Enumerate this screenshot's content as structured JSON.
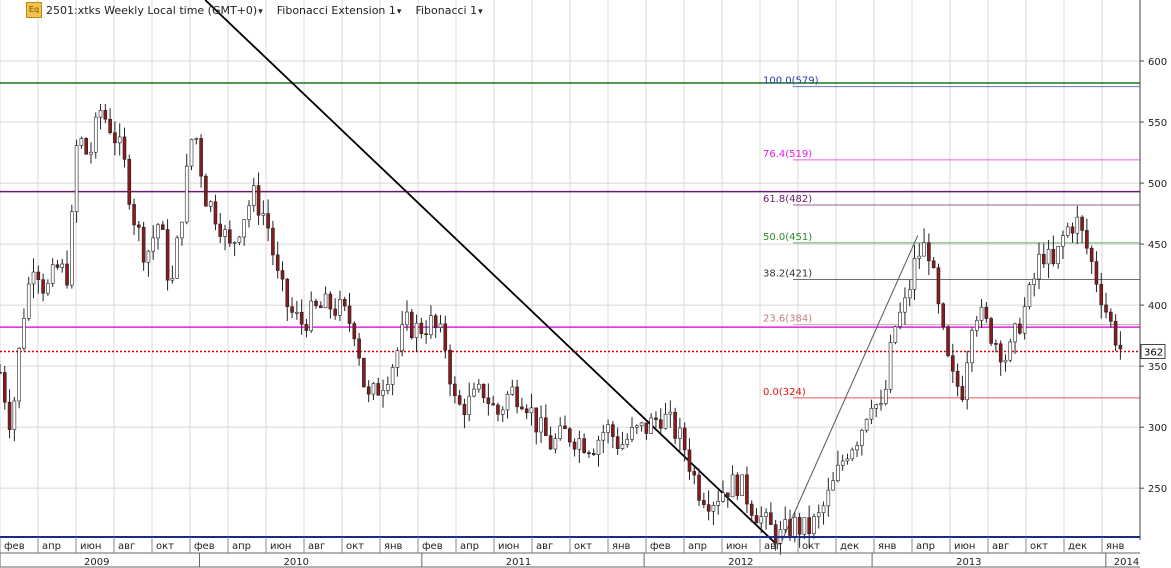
{
  "header": {
    "symbol_label": "2501:xtks Weekly Local time (GMT+0)",
    "indicator_1": "Fibonacci Extension 1",
    "indicator_2": "Fibonacci 1"
  },
  "price_label": "362",
  "colors": {
    "candle_up": "#ffffff",
    "candle_down": "#8b1a1a",
    "candle_wick": "#222222",
    "h_green": "#1a7a1a",
    "h_purple": "#6a1a6a",
    "h_magenta": "#e020e0",
    "h_red_dotted": "#cc0000",
    "trendline": "#000000",
    "grid": "#d8d8d8"
  },
  "chart_data": {
    "type": "candlestick",
    "y_ticks": [
      250,
      300,
      350,
      400,
      450,
      500,
      550,
      600
    ],
    "y_range": [
      210,
      650
    ],
    "x_months": [
      "фев",
      "апр",
      "июн",
      "авг",
      "окт",
      "фев",
      "апр",
      "июн",
      "авг",
      "окт",
      "янв",
      "фев",
      "апр",
      "июн",
      "авг",
      "окт",
      "янв",
      "фев",
      "апр",
      "июн",
      "авг",
      "окт",
      "дек",
      "янв",
      "апр",
      "июн",
      "авг",
      "окт",
      "дек",
      "янв"
    ],
    "x_years": [
      "2009",
      "2010",
      "2011",
      "2012",
      "2013",
      "2014"
    ],
    "horizontal_lines": [
      {
        "price": 582,
        "style": "solid",
        "color": "#1a7a1a"
      },
      {
        "price": 493,
        "style": "solid",
        "color": "#6a1a6a"
      },
      {
        "price": 382,
        "style": "solid",
        "color": "#e020e0"
      },
      {
        "price": 362,
        "style": "dotted",
        "color": "#cc0000"
      }
    ],
    "fibonacci_extension": [
      {
        "label": "100.0(579)",
        "price": 579,
        "color": "#2a3aa8"
      },
      {
        "label": "76.4(519)",
        "price": 519,
        "color": "#e020e0"
      },
      {
        "label": "61.8(482)",
        "price": 482,
        "color": "#6a1a6a"
      },
      {
        "label": "50.0(451)",
        "price": 451,
        "color": "#2a8a2a"
      },
      {
        "label": "38.2(421)",
        "price": 421,
        "color": "#333333"
      },
      {
        "label": "23.6(384)",
        "price": 384,
        "color": "#c08080"
      },
      {
        "label": "0.0(324)",
        "price": 324,
        "color": "#e01010"
      }
    ],
    "trendline": {
      "from": {
        "week": 0.18,
        "price": 650
      },
      "to": {
        "week": 0.68,
        "price": 205
      }
    },
    "fib_leg": {
      "from": {
        "week": 0.685,
        "price": 205
      },
      "to": {
        "week": 0.805,
        "price": 457
      }
    },
    "price_series": [
      {
        "w": 0.0,
        "p": 345
      },
      {
        "w": 0.01,
        "p": 300
      },
      {
        "w": 0.02,
        "p": 390
      },
      {
        "w": 0.03,
        "p": 440
      },
      {
        "w": 0.04,
        "p": 410
      },
      {
        "w": 0.05,
        "p": 430
      },
      {
        "w": 0.06,
        "p": 425
      },
      {
        "w": 0.068,
        "p": 540
      },
      {
        "w": 0.078,
        "p": 520
      },
      {
        "w": 0.088,
        "p": 560
      },
      {
        "w": 0.098,
        "p": 545
      },
      {
        "w": 0.108,
        "p": 520
      },
      {
        "w": 0.118,
        "p": 470
      },
      {
        "w": 0.128,
        "p": 440
      },
      {
        "w": 0.14,
        "p": 470
      },
      {
        "w": 0.15,
        "p": 410
      },
      {
        "w": 0.16,
        "p": 480
      },
      {
        "w": 0.17,
        "p": 550
      },
      {
        "w": 0.18,
        "p": 490
      },
      {
        "w": 0.192,
        "p": 470
      },
      {
        "w": 0.202,
        "p": 445
      },
      {
        "w": 0.212,
        "p": 470
      },
      {
        "w": 0.222,
        "p": 490
      },
      {
        "w": 0.234,
        "p": 470
      },
      {
        "w": 0.244,
        "p": 420
      },
      {
        "w": 0.254,
        "p": 395
      },
      {
        "w": 0.264,
        "p": 385
      },
      {
        "w": 0.276,
        "p": 395
      },
      {
        "w": 0.288,
        "p": 400
      },
      {
        "w": 0.3,
        "p": 395
      },
      {
        "w": 0.312,
        "p": 380
      },
      {
        "w": 0.322,
        "p": 320
      },
      {
        "w": 0.334,
        "p": 335
      },
      {
        "w": 0.346,
        "p": 355
      },
      {
        "w": 0.356,
        "p": 385
      },
      {
        "w": 0.366,
        "p": 380
      },
      {
        "w": 0.378,
        "p": 385
      },
      {
        "w": 0.39,
        "p": 370
      },
      {
        "w": 0.4,
        "p": 315
      },
      {
        "w": 0.412,
        "p": 320
      },
      {
        "w": 0.424,
        "p": 330
      },
      {
        "w": 0.436,
        "p": 310
      },
      {
        "w": 0.448,
        "p": 330
      },
      {
        "w": 0.46,
        "p": 325
      },
      {
        "w": 0.472,
        "p": 300
      },
      {
        "w": 0.484,
        "p": 285
      },
      {
        "w": 0.496,
        "p": 295
      },
      {
        "w": 0.508,
        "p": 290
      },
      {
        "w": 0.52,
        "p": 285
      },
      {
        "w": 0.532,
        "p": 300
      },
      {
        "w": 0.544,
        "p": 285
      },
      {
        "w": 0.556,
        "p": 295
      },
      {
        "w": 0.568,
        "p": 300
      },
      {
        "w": 0.58,
        "p": 310
      },
      {
        "w": 0.59,
        "p": 300
      },
      {
        "w": 0.6,
        "p": 285
      },
      {
        "w": 0.612,
        "p": 250
      },
      {
        "w": 0.624,
        "p": 240
      },
      {
        "w": 0.636,
        "p": 250
      },
      {
        "w": 0.648,
        "p": 255
      },
      {
        "w": 0.66,
        "p": 235
      },
      {
        "w": 0.672,
        "p": 220
      },
      {
        "w": 0.684,
        "p": 210
      },
      {
        "w": 0.696,
        "p": 220
      },
      {
        "w": 0.708,
        "p": 215
      },
      {
        "w": 0.718,
        "p": 225
      },
      {
        "w": 0.73,
        "p": 250
      },
      {
        "w": 0.742,
        "p": 280
      },
      {
        "w": 0.754,
        "p": 295
      },
      {
        "w": 0.764,
        "p": 325
      },
      {
        "w": 0.774,
        "p": 310
      },
      {
        "w": 0.784,
        "p": 380
      },
      {
        "w": 0.794,
        "p": 400
      },
      {
        "w": 0.804,
        "p": 440
      },
      {
        "w": 0.814,
        "p": 450
      },
      {
        "w": 0.824,
        "p": 390
      },
      {
        "w": 0.834,
        "p": 340
      },
      {
        "w": 0.844,
        "p": 330
      },
      {
        "w": 0.854,
        "p": 400
      },
      {
        "w": 0.864,
        "p": 385
      },
      {
        "w": 0.874,
        "p": 370
      },
      {
        "w": 0.884,
        "p": 355
      },
      {
        "w": 0.894,
        "p": 385
      },
      {
        "w": 0.904,
        "p": 410
      },
      {
        "w": 0.914,
        "p": 445
      },
      {
        "w": 0.924,
        "p": 430
      },
      {
        "w": 0.934,
        "p": 460
      },
      {
        "w": 0.944,
        "p": 470
      },
      {
        "w": 0.954,
        "p": 445
      },
      {
        "w": 0.964,
        "p": 415
      },
      {
        "w": 0.974,
        "p": 385
      },
      {
        "w": 0.984,
        "p": 362
      }
    ]
  }
}
